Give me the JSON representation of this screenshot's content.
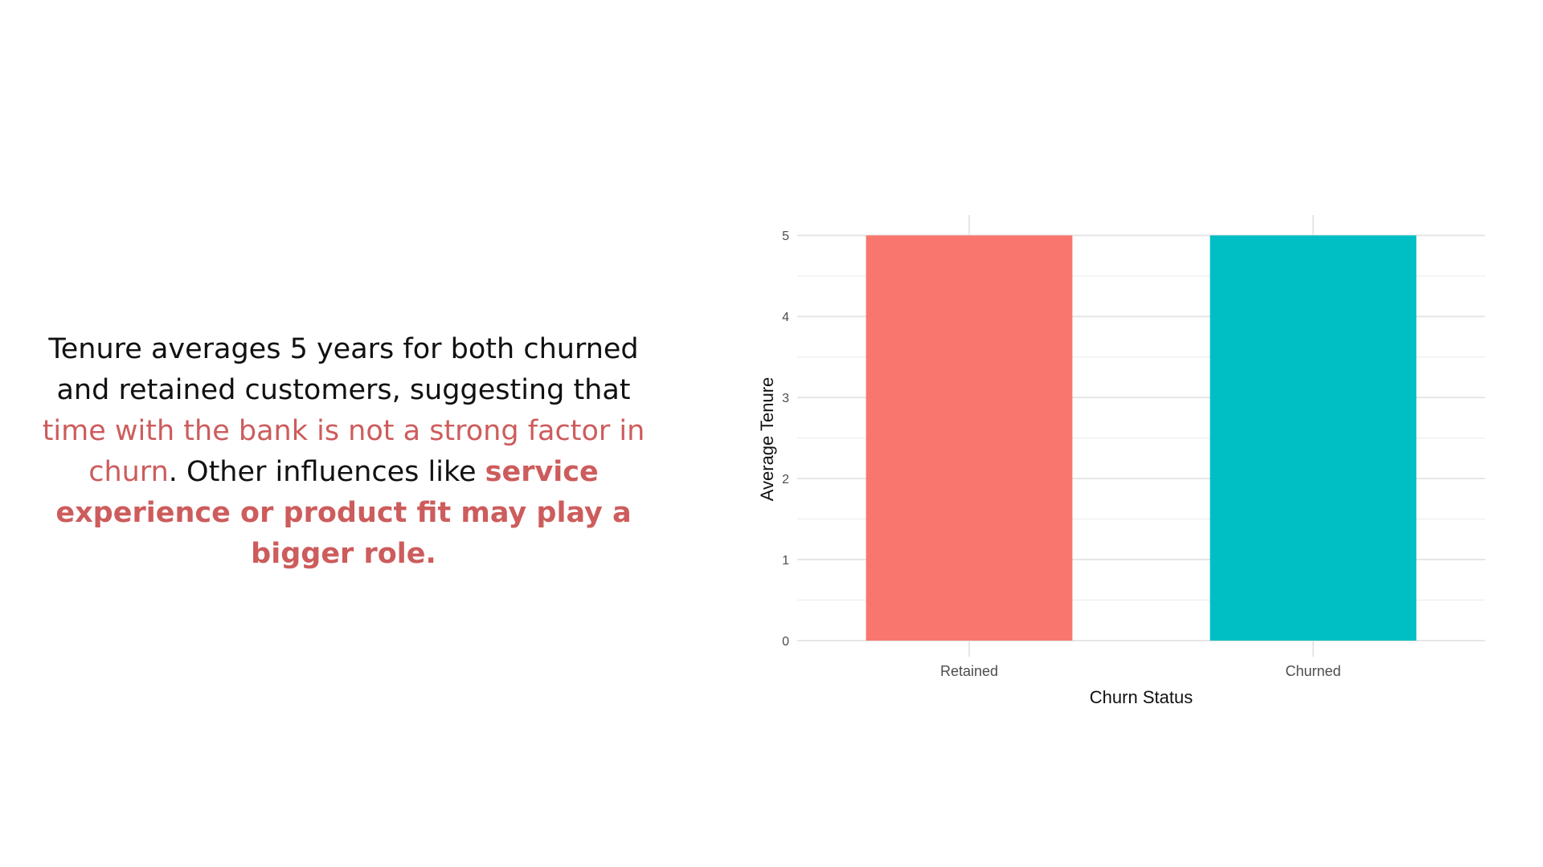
{
  "narrative": {
    "part1": "Tenure averages 5 years for both churned and retained customers, suggesting that ",
    "highlight1": "time with the bank is not a strong factor in churn",
    "part2": ". Other influences like ",
    "highlight2": "service experience or product fit may play a bigger role.",
    "accent_color": "#cd5c5c"
  },
  "chart_data": {
    "type": "bar",
    "categories": [
      "Retained",
      "Churned"
    ],
    "values": [
      5,
      5
    ],
    "colors": [
      "#f8766d",
      "#00bfc4"
    ],
    "title": "",
    "xlabel": "Churn Status",
    "ylabel": "Average Tenure",
    "ylim": [
      0,
      5.25
    ],
    "yticks": [
      "0",
      "1",
      "2",
      "3",
      "4",
      "5"
    ],
    "grid": true,
    "legend": "none"
  }
}
